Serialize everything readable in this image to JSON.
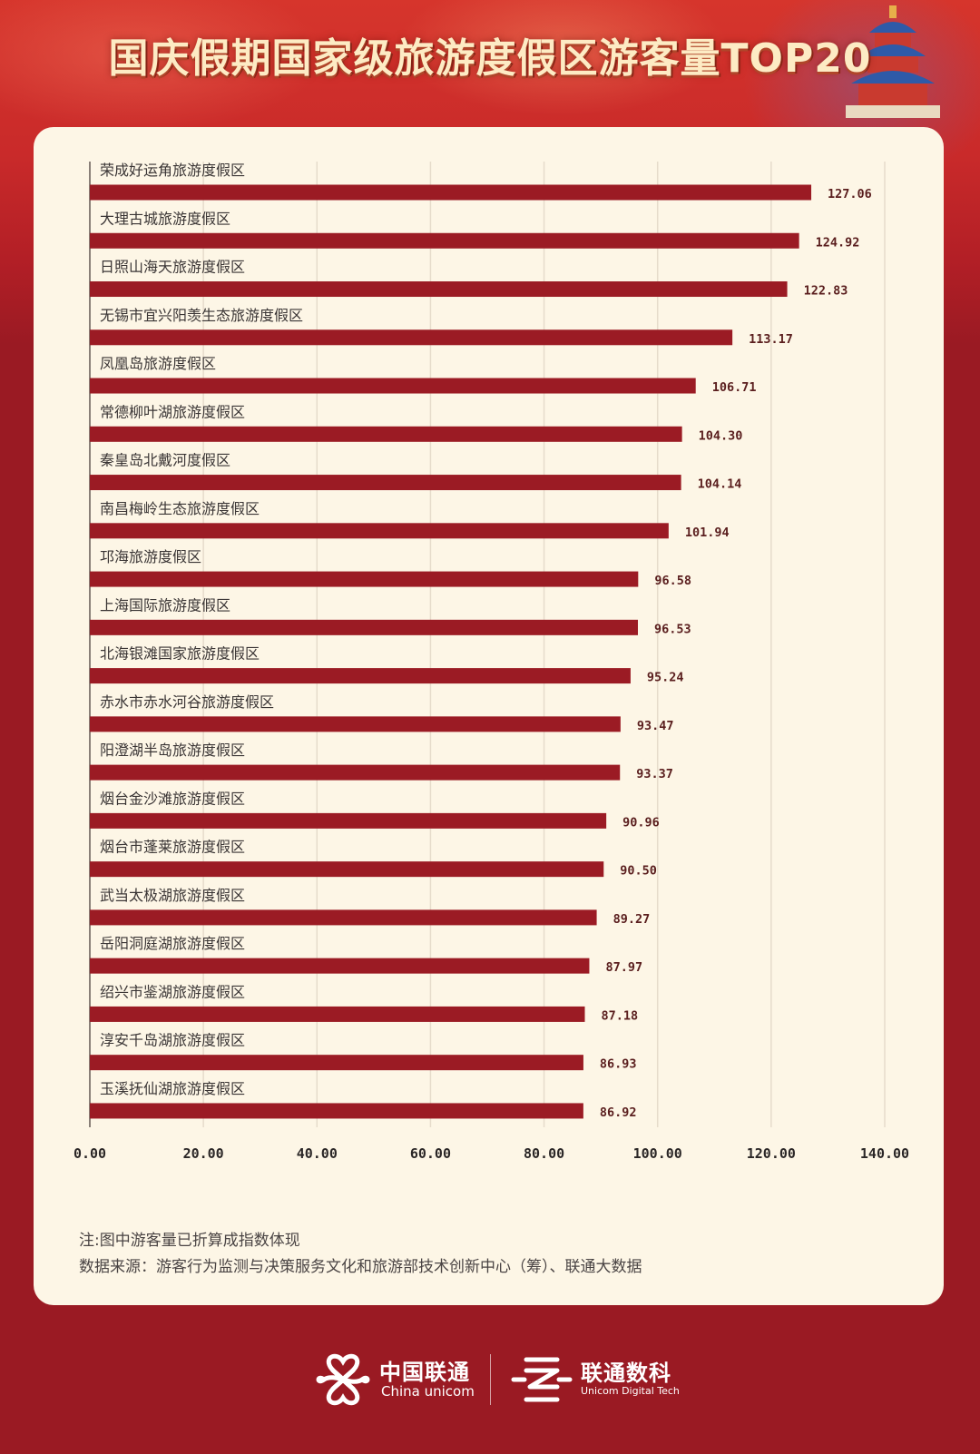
{
  "header": {
    "title": "国庆假期国家级旅游度假区游客量TOP20"
  },
  "chart_data": {
    "type": "bar",
    "orientation": "horizontal",
    "title": "国庆假期国家级旅游度假区游客量TOP20",
    "xlabel": "",
    "ylabel": "",
    "xlim": [
      0,
      140
    ],
    "grid": true,
    "categories": [
      "荣成好运角旅游度假区",
      "大理古城旅游度假区",
      "日照山海天旅游度假区",
      "无锡市宜兴阳羡生态旅游度假区",
      "凤凰岛旅游度假区",
      "常德柳叶湖旅游度假区",
      "秦皇岛北戴河度假区",
      "南昌梅岭生态旅游度假区",
      "邛海旅游度假区",
      "上海国际旅游度假区",
      "北海银滩国家旅游度假区",
      "赤水市赤水河谷旅游度假区",
      "阳澄湖半岛旅游度假区",
      "烟台金沙滩旅游度假区",
      "烟台市蓬莱旅游度假区",
      "武当太极湖旅游度假区",
      "岳阳洞庭湖旅游度假区",
      "绍兴市鉴湖旅游度假区",
      "淳安千岛湖旅游度假区",
      "玉溪抚仙湖旅游度假区"
    ],
    "values": [
      127.06,
      124.92,
      122.83,
      113.17,
      106.71,
      104.3,
      104.14,
      101.94,
      96.58,
      96.53,
      95.24,
      93.47,
      93.37,
      90.96,
      90.5,
      89.27,
      87.97,
      87.18,
      86.93,
      86.92
    ],
    "value_labels": [
      "127.06",
      "124.92",
      "122.83",
      "113.17",
      "106.71",
      "104.30",
      "104.14",
      "101.94",
      "96.58",
      "96.53",
      "95.24",
      "93.47",
      "93.37",
      "90.96",
      "90.50",
      "89.27",
      "87.97",
      "87.18",
      "86.93",
      "86.92"
    ],
    "x_ticks": [
      0,
      20,
      40,
      60,
      80,
      100,
      120,
      140
    ],
    "x_tick_labels": [
      "0.00",
      "20.00",
      "40.00",
      "60.00",
      "80.00",
      "100.00",
      "120.00",
      "140.00"
    ],
    "colors": {
      "bar": "#9b1b24",
      "value_label": "#5a1e1e",
      "grid": "#e6dccb",
      "axis": "#8a8078"
    }
  },
  "notes": {
    "note": "注:图中游客量已折算成指数体现",
    "source": "数据来源：游客行为监测与决策服务文化和旅游部技术创新中心（筹）、联通大数据"
  },
  "footer": {
    "china_unicom_cn": "中国联通",
    "china_unicom_en": "China unicom",
    "digital_tech_cn": "联通数科",
    "digital_tech_en": "Unicom Digital Tech"
  },
  "colors": {
    "background": "#9a1a23",
    "card": "#fdf6e6",
    "title": "#fdebc4"
  }
}
